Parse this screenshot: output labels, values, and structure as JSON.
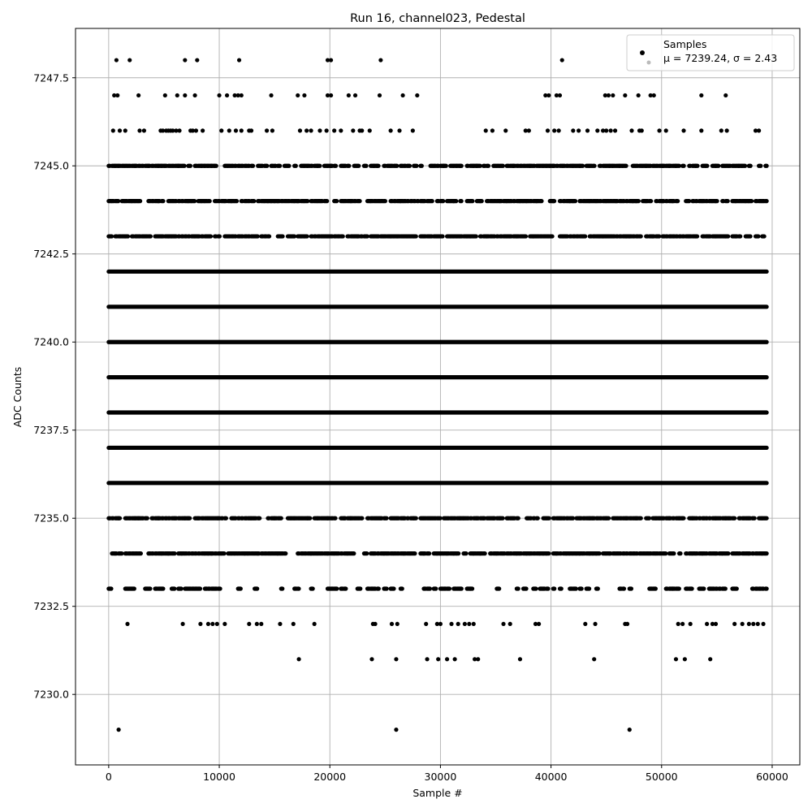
{
  "chart_data": {
    "type": "scatter",
    "title": "Run 16, channel023, Pedestal",
    "xlabel": "Sample #",
    "ylabel": "ADC Counts",
    "xlim": [
      -3000,
      62500
    ],
    "ylim": [
      7228.0,
      7248.9
    ],
    "xticks": [
      0,
      10000,
      20000,
      30000,
      40000,
      50000,
      60000
    ],
    "xtick_labels": [
      "0",
      "10000",
      "20000",
      "30000",
      "40000",
      "50000",
      "60000"
    ],
    "yticks": [
      7230.0,
      7232.5,
      7235.0,
      7237.5,
      7240.0,
      7242.5,
      7245.0,
      7247.5
    ],
    "ytick_labels": [
      "7230.0",
      "7232.5",
      "7235.0",
      "7237.5",
      "7240.0",
      "7242.5",
      "7245.0",
      "7247.5"
    ],
    "grid": true,
    "legend_position": "top-right",
    "marker_color": "#000000",
    "series": [
      {
        "name": "Samples",
        "x_range": [
          0,
          59500
        ],
        "levels": [
          {
            "y": 7229,
            "x": [
              900,
              26000,
              47100
            ]
          },
          {
            "y": 7231,
            "x": [
              17200,
              23800,
              26000,
              28800,
              29800,
              30600,
              31300,
              33100,
              33400,
              37200,
              43900,
              51300,
              52100,
              54400
            ]
          },
          {
            "y": 7232,
            "x": [
              1700,
              6700,
              8300,
              9000,
              9400,
              9800,
              10500,
              12700,
              13400,
              13800,
              15500,
              16700,
              18600,
              23900,
              24100,
              25600,
              26100,
              28700,
              29700,
              30000,
              31000,
              31600,
              32200,
              32600,
              33000,
              35700,
              36300,
              38600,
              38900,
              43100,
              44000,
              46700,
              46900,
              51500,
              51900,
              52600,
              54100,
              54600,
              54900,
              56600,
              57300,
              57900,
              58300,
              58700,
              59200
            ]
          },
          {
            "y": 7233,
            "density": 0.45
          },
          {
            "y": 7234,
            "density": 0.85
          },
          {
            "y": 7235,
            "density": 0.85
          },
          {
            "y": 7236,
            "density": 1.0
          },
          {
            "y": 7237,
            "density": 1.0
          },
          {
            "y": 7238,
            "density": 1.0
          },
          {
            "y": 7239,
            "density": 1.0
          },
          {
            "y": 7240,
            "density": 1.0
          },
          {
            "y": 7241,
            "density": 1.0
          },
          {
            "y": 7242,
            "density": 1.0
          },
          {
            "y": 7243,
            "density": 0.85
          },
          {
            "y": 7244,
            "density": 0.85
          },
          {
            "y": 7245,
            "density": 0.85
          },
          {
            "y": 7246,
            "x": [
              400,
              1000,
              1500,
              2800,
              3200,
              4700,
              4900,
              5200,
              5400,
              5600,
              5800,
              6100,
              6400,
              7400,
              7600,
              7900,
              8500,
              10200,
              10900,
              11500,
              12000,
              12700,
              12900,
              14300,
              14800,
              17300,
              17900,
              18300,
              19100,
              19700,
              20400,
              21000,
              22100,
              22700,
              22900,
              23600,
              25500,
              26300,
              27500,
              34100,
              34700,
              35900,
              37700,
              38000,
              39700,
              40300,
              40700,
              42000,
              42500,
              43300,
              44200,
              44700,
              45000,
              45400,
              45800,
              47300,
              48000,
              48200,
              49800,
              50400,
              52000,
              53600,
              55400,
              55900,
              58500,
              58800
            ]
          },
          {
            "y": 7247,
            "x": [
              500,
              800,
              2700,
              5100,
              6200,
              6900,
              7800,
              10000,
              10700,
              11400,
              11700,
              12000,
              14700,
              17100,
              17700,
              19800,
              20100,
              21700,
              22300,
              24500,
              26600,
              27900,
              39500,
              39800,
              40500,
              40800,
              44900,
              45200,
              45600,
              46700,
              47900,
              49000,
              49300,
              53600,
              55800
            ]
          },
          {
            "y": 7248,
            "x": [
              700,
              1900,
              6900,
              8000,
              11800,
              19800,
              20100,
              24600,
              41000
            ]
          }
        ]
      }
    ],
    "legend": {
      "marker_label": "Samples",
      "stats_label": "μ = 7239.24, σ = 2.43"
    }
  }
}
